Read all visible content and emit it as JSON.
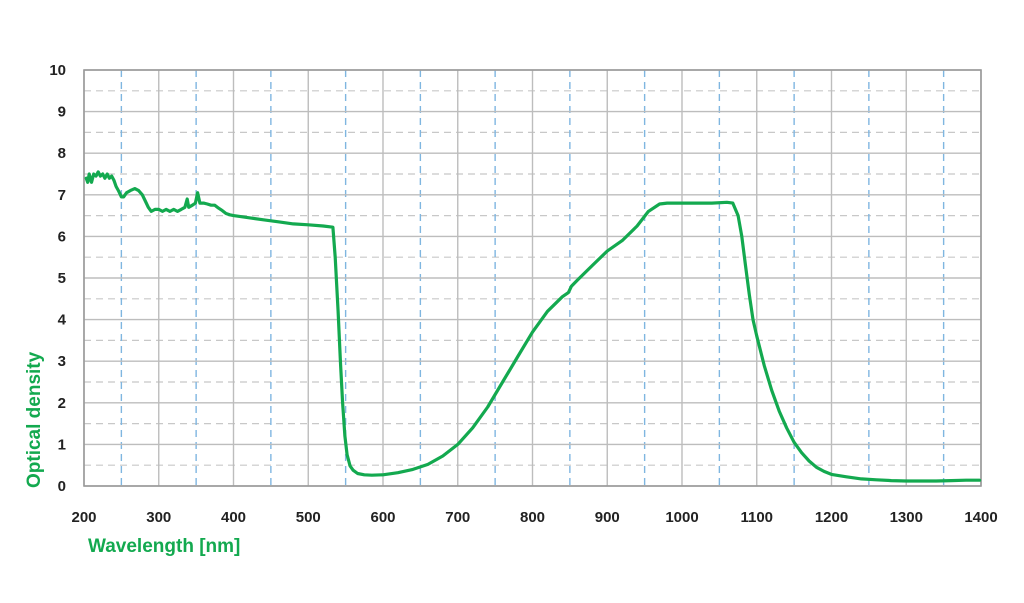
{
  "chart_data": {
    "type": "line",
    "title": "",
    "xlabel": "Wavelength [nm]",
    "ylabel": "Optical density",
    "xlim": [
      200,
      1400
    ],
    "ylim": [
      0,
      10
    ],
    "x_major_ticks": [
      200,
      300,
      400,
      500,
      600,
      700,
      800,
      900,
      1000,
      1100,
      1200,
      1300,
      1400
    ],
    "x_minor_ticks": [
      250,
      350,
      450,
      550,
      650,
      750,
      850,
      950,
      1050,
      1150,
      1250,
      1350
    ],
    "y_major_ticks": [
      0,
      1,
      2,
      3,
      4,
      5,
      6,
      7,
      8,
      9,
      10
    ],
    "y_minor_ticks": [
      0.5,
      1.5,
      2.5,
      3.5,
      4.5,
      5.5,
      6.5,
      7.5,
      8.5,
      9.5
    ],
    "grid": true,
    "legend": "none",
    "colors": {
      "series": "#13a94f",
      "axis_label": "#13a94f",
      "tick_label": "#222222",
      "major_grid": "#bdbdbd",
      "minor_grid_x": "#7fb6e0",
      "minor_grid_y": "#c8c8c8",
      "frame": "#9a9a9a"
    },
    "series": [
      {
        "name": "",
        "points": [
          [
            203,
            7.4
          ],
          [
            205,
            7.3
          ],
          [
            207,
            7.5
          ],
          [
            210,
            7.3
          ],
          [
            213,
            7.5
          ],
          [
            216,
            7.45
          ],
          [
            219,
            7.55
          ],
          [
            222,
            7.45
          ],
          [
            225,
            7.5
          ],
          [
            228,
            7.4
          ],
          [
            231,
            7.5
          ],
          [
            234,
            7.4
          ],
          [
            237,
            7.45
          ],
          [
            240,
            7.35
          ],
          [
            243,
            7.2
          ],
          [
            246,
            7.1
          ],
          [
            250,
            6.95
          ],
          [
            253,
            6.95
          ],
          [
            257,
            7.05
          ],
          [
            262,
            7.1
          ],
          [
            268,
            7.15
          ],
          [
            273,
            7.1
          ],
          [
            278,
            7.0
          ],
          [
            282,
            6.85
          ],
          [
            286,
            6.7
          ],
          [
            290,
            6.6
          ],
          [
            295,
            6.65
          ],
          [
            300,
            6.65
          ],
          [
            305,
            6.6
          ],
          [
            310,
            6.65
          ],
          [
            315,
            6.6
          ],
          [
            320,
            6.65
          ],
          [
            325,
            6.6
          ],
          [
            330,
            6.65
          ],
          [
            335,
            6.7
          ],
          [
            338,
            6.9
          ],
          [
            340,
            6.7
          ],
          [
            345,
            6.75
          ],
          [
            349,
            6.8
          ],
          [
            352,
            7.05
          ],
          [
            355,
            6.8
          ],
          [
            360,
            6.8
          ],
          [
            365,
            6.78
          ],
          [
            370,
            6.75
          ],
          [
            375,
            6.75
          ],
          [
            380,
            6.68
          ],
          [
            385,
            6.62
          ],
          [
            390,
            6.55
          ],
          [
            395,
            6.52
          ],
          [
            400,
            6.5
          ],
          [
            420,
            6.45
          ],
          [
            440,
            6.4
          ],
          [
            460,
            6.35
          ],
          [
            480,
            6.3
          ],
          [
            500,
            6.28
          ],
          [
            520,
            6.25
          ],
          [
            533,
            6.22
          ],
          [
            536,
            5.5
          ],
          [
            540,
            4.2
          ],
          [
            543,
            3.0
          ],
          [
            546,
            2.0
          ],
          [
            549,
            1.2
          ],
          [
            552,
            0.75
          ],
          [
            556,
            0.48
          ],
          [
            560,
            0.38
          ],
          [
            566,
            0.3
          ],
          [
            575,
            0.27
          ],
          [
            585,
            0.26
          ],
          [
            600,
            0.27
          ],
          [
            620,
            0.32
          ],
          [
            640,
            0.4
          ],
          [
            660,
            0.52
          ],
          [
            680,
            0.72
          ],
          [
            700,
            1.0
          ],
          [
            720,
            1.4
          ],
          [
            740,
            1.9
          ],
          [
            760,
            2.5
          ],
          [
            780,
            3.1
          ],
          [
            800,
            3.7
          ],
          [
            820,
            4.2
          ],
          [
            840,
            4.55
          ],
          [
            848,
            4.65
          ],
          [
            852,
            4.8
          ],
          [
            860,
            4.95
          ],
          [
            880,
            5.3
          ],
          [
            900,
            5.65
          ],
          [
            920,
            5.9
          ],
          [
            940,
            6.25
          ],
          [
            955,
            6.6
          ],
          [
            970,
            6.78
          ],
          [
            980,
            6.8
          ],
          [
            1000,
            6.8
          ],
          [
            1020,
            6.8
          ],
          [
            1040,
            6.8
          ],
          [
            1060,
            6.82
          ],
          [
            1068,
            6.8
          ],
          [
            1075,
            6.5
          ],
          [
            1080,
            6.0
          ],
          [
            1085,
            5.3
          ],
          [
            1090,
            4.6
          ],
          [
            1095,
            4.0
          ],
          [
            1100,
            3.6
          ],
          [
            1110,
            2.9
          ],
          [
            1120,
            2.3
          ],
          [
            1130,
            1.8
          ],
          [
            1140,
            1.4
          ],
          [
            1150,
            1.05
          ],
          [
            1160,
            0.8
          ],
          [
            1170,
            0.6
          ],
          [
            1180,
            0.45
          ],
          [
            1190,
            0.35
          ],
          [
            1200,
            0.28
          ],
          [
            1220,
            0.22
          ],
          [
            1240,
            0.17
          ],
          [
            1260,
            0.15
          ],
          [
            1280,
            0.13
          ],
          [
            1300,
            0.12
          ],
          [
            1320,
            0.12
          ],
          [
            1340,
            0.12
          ],
          [
            1360,
            0.13
          ],
          [
            1380,
            0.14
          ],
          [
            1398,
            0.14
          ]
        ]
      }
    ]
  }
}
